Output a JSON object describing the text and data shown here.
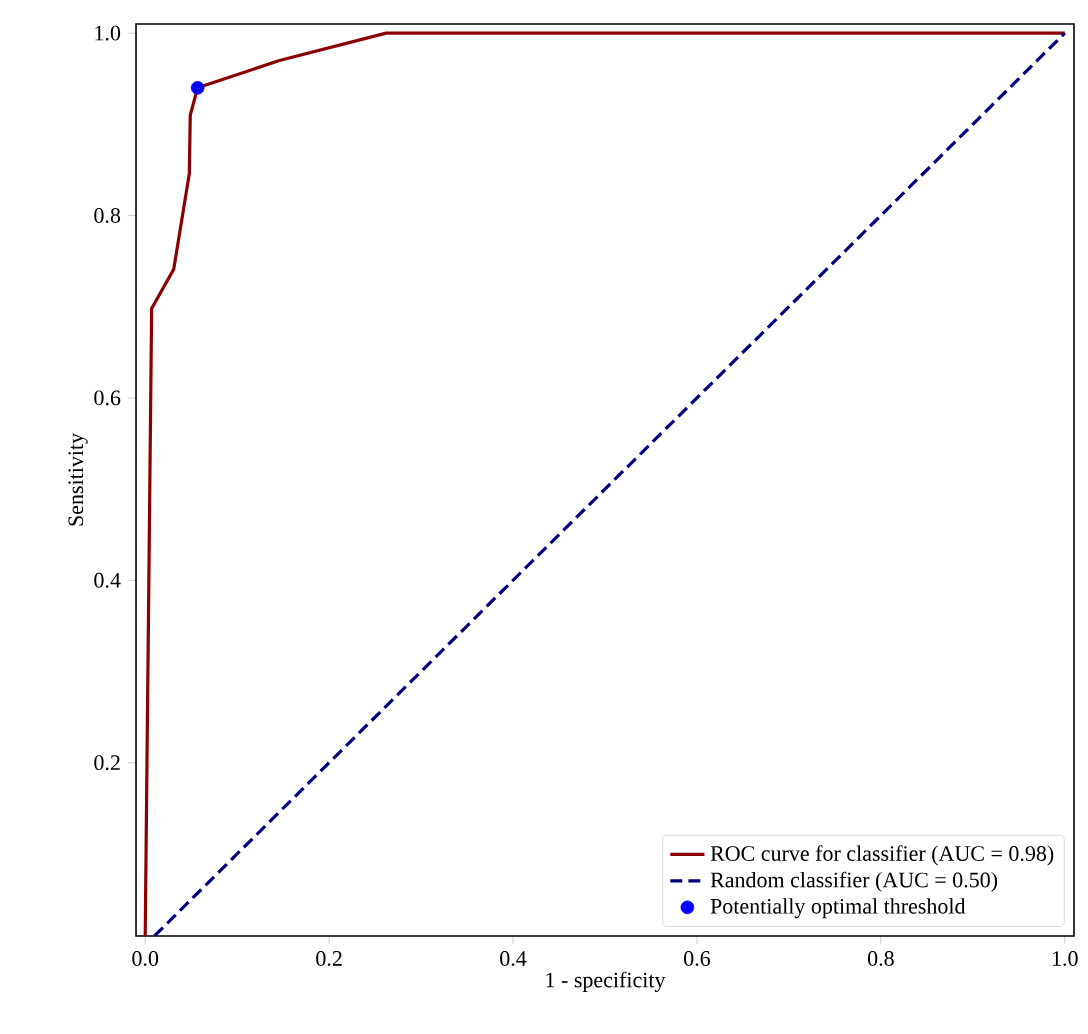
{
  "chart_data": {
    "type": "line",
    "xlabel": "1 - specificity",
    "ylabel": "Sensitivity",
    "xlim": [
      -0.01,
      1.01
    ],
    "ylim": [
      0.01,
      1.01
    ],
    "xticks": [
      {
        "value": 0.0,
        "label": "0.0"
      },
      0.2,
      0.4,
      0.6,
      0.8,
      {
        "value": 1.0,
        "label": "1.0"
      }
    ],
    "yticks": [
      0.2,
      0.4,
      0.6,
      0.8,
      {
        "value": 1.0,
        "label": "1.0"
      }
    ],
    "legend": "bottom right",
    "grid": false,
    "series": [
      {
        "name": "ROC curve for classifier (AUC = 0.98)",
        "color": "#8b0000",
        "line_style": "solid",
        "x": [
          0.0,
          0.007,
          0.031,
          0.048,
          0.049,
          0.057,
          0.146,
          0.262,
          1.0
        ],
        "values": [
          0.01,
          0.698,
          0.741,
          0.846,
          0.91,
          0.94,
          0.97,
          1.0,
          1.0
        ]
      },
      {
        "name": "Random classifier (AUC = 0.50)",
        "color": "#000080",
        "line_style": "dashed",
        "x": [
          0.01,
          1.0
        ],
        "values": [
          0.01,
          1.0
        ]
      },
      {
        "name": "Potentially optimal threshold",
        "type": "scatter",
        "color": "#0000ff",
        "marker": "circle",
        "x": [
          0.057
        ],
        "values": [
          0.94
        ]
      }
    ]
  }
}
